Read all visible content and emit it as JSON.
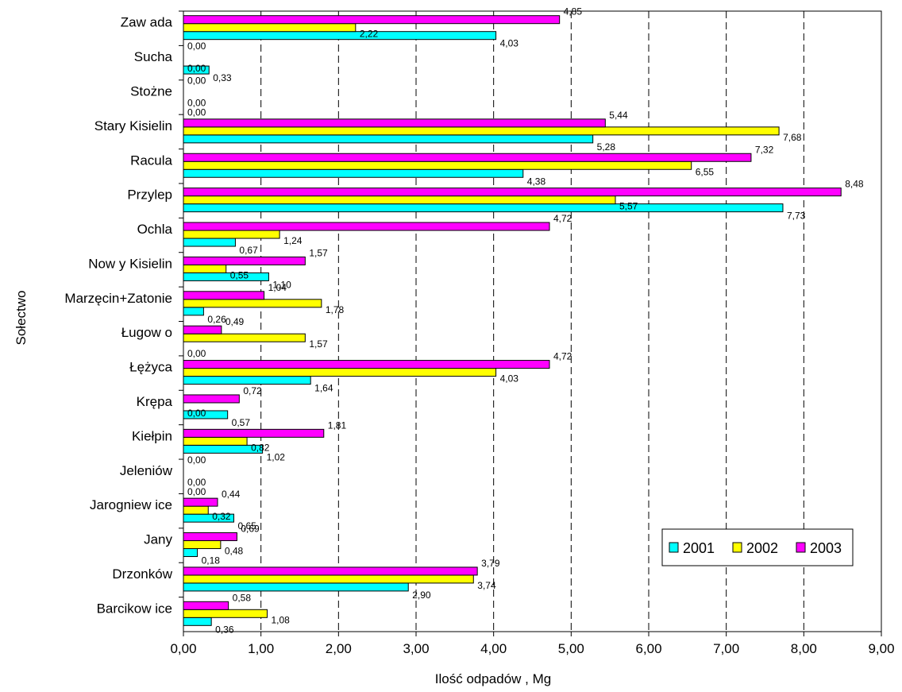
{
  "chart_data": {
    "type": "bar",
    "orientation": "horizontal",
    "xlabel": "Ilość odpadów , Mg",
    "ylabel": "Sołectwo",
    "xlim": [
      0,
      9
    ],
    "x_ticks": [
      "0,00",
      "1,00",
      "2,00",
      "3,00",
      "4,00",
      "5,00",
      "6,00",
      "7,00",
      "8,00",
      "9,00"
    ],
    "grid": "vertical dashed",
    "legend_position": "bottom-right",
    "categories": [
      "Zaw ada",
      "Sucha",
      "Stożne",
      "Stary Kisielin",
      "Racula",
      "Przylep",
      "Ochla",
      "Now y Kisielin",
      "Marzęcin+Zatonie",
      "Ługow o",
      "Łężyca",
      "Krępa",
      "Kiełpin",
      "Jeleniów",
      "Jarogniew ice",
      "Jany",
      "Drzonków",
      "Barcikow ice"
    ],
    "series": [
      {
        "name": "2001",
        "color": "#00FFFF",
        "values": [
          4.03,
          0.33,
          0.0,
          5.28,
          4.38,
          7.73,
          0.67,
          1.1,
          0.26,
          0.0,
          1.64,
          0.57,
          1.02,
          0.0,
          0.65,
          0.18,
          2.9,
          0.36
        ],
        "labels": [
          "4,03",
          "0,33",
          "0,00",
          "5,28",
          "4,38",
          "7,73",
          "0,67",
          "1,10",
          "0,26",
          "0,00",
          "1,64",
          "0,57",
          "1,02",
          "0,00",
          "0,65",
          "0,18",
          "2,90",
          "0,36"
        ]
      },
      {
        "name": "2002",
        "color": "#FFFF00",
        "values": [
          2.22,
          0.0,
          0.0,
          7.68,
          6.55,
          5.57,
          1.24,
          0.55,
          1.78,
          1.57,
          4.03,
          0.0,
          0.82,
          0.0,
          0.32,
          0.48,
          3.74,
          1.08
        ],
        "labels": [
          "2,22",
          "0,00",
          "0,00",
          "7,68",
          "6,55",
          "5,57",
          "1,24",
          "0,55",
          "1,78",
          "1,57",
          "4,03",
          "0,00",
          "0,82",
          "0,00",
          "0,32",
          "0,48",
          "3,74",
          "1,08"
        ]
      },
      {
        "name": "2003",
        "color": "#FF00FF",
        "values": [
          4.85,
          0.0,
          0.0,
          5.44,
          7.32,
          8.48,
          4.72,
          1.57,
          1.04,
          0.49,
          4.72,
          0.72,
          1.81,
          0.0,
          0.44,
          0.69,
          3.79,
          0.58
        ],
        "labels": [
          "4,85",
          "0,00",
          "0,00",
          "5,44",
          "7,32",
          "8,48",
          "4,72",
          "1,57",
          "1,04",
          "0,49",
          "4,72",
          "0,72",
          "1,81",
          "0,00",
          "0,44",
          "0,69",
          "3,79",
          "0,58"
        ]
      }
    ]
  }
}
